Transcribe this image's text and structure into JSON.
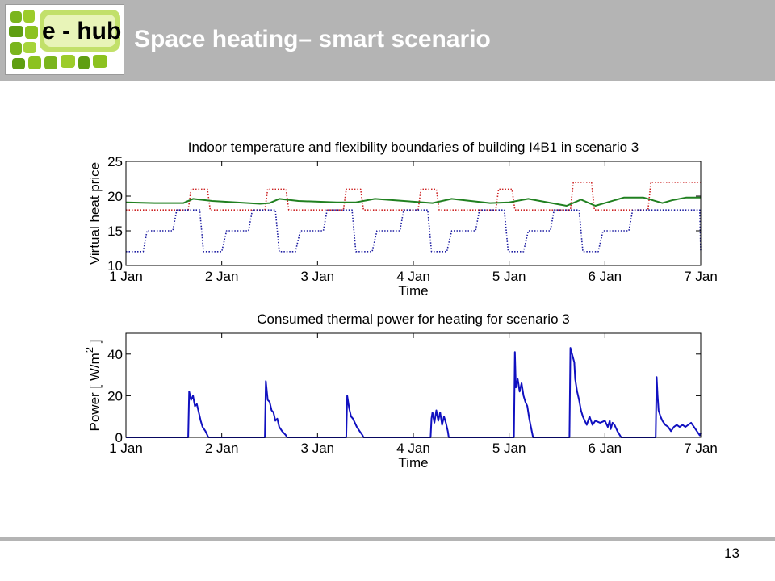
{
  "header": {
    "logo_text": "e - hub",
    "title": "Space heating– smart scenario"
  },
  "footer": {
    "page_number": "13"
  },
  "chart_data": [
    {
      "type": "line",
      "title": "Indoor temperature and flexibility boundaries of building I4B1 in scenario 3",
      "xlabel": "Time",
      "ylabel": "Virtual heat price",
      "xlim": [
        0,
        6
      ],
      "ylim": [
        10,
        25
      ],
      "xticks": [
        0,
        1,
        2,
        3,
        4,
        5,
        6
      ],
      "xtick_labels": [
        "1 Jan",
        "2 Jan",
        "3 Jan",
        "4 Jan",
        "5 Jan",
        "6 Jan",
        "7 Jan"
      ],
      "yticks": [
        10,
        15,
        20,
        25
      ],
      "grid": false,
      "colors": {
        "upper": "#cc2222",
        "lower": "#1a1aa0",
        "temp": "#208020"
      },
      "series": [
        {
          "style": "dotted",
          "color": "#cc2222",
          "x": [
            0,
            0.65,
            0.68,
            0.85,
            0.88,
            1.45,
            1.48,
            1.67,
            1.7,
            2.27,
            2.3,
            2.45,
            2.48,
            3.05,
            3.08,
            3.24,
            3.27,
            3.86,
            3.89,
            4.03,
            4.06,
            4.64,
            4.67,
            4.86,
            4.89,
            5.45,
            5.48,
            5.7,
            5.73,
            6.0
          ],
          "y": [
            18,
            18,
            21,
            21,
            18,
            18,
            21,
            21,
            18,
            18,
            21,
            21,
            18,
            18,
            21,
            21,
            18,
            18,
            21,
            21,
            18,
            18,
            22,
            22,
            18,
            18,
            22,
            22,
            22,
            22
          ]
        },
        {
          "style": "dotted",
          "color": "#1a1aa0",
          "x": [
            0,
            0.18,
            0.22,
            0.49,
            0.53,
            0.77,
            0.81,
            1.0,
            1.05,
            1.28,
            1.32,
            1.56,
            1.6,
            1.77,
            1.82,
            2.06,
            2.1,
            2.36,
            2.4,
            2.57,
            2.62,
            2.86,
            2.9,
            3.15,
            3.19,
            3.35,
            3.4,
            3.65,
            3.69,
            3.95,
            3.99,
            4.15,
            4.2,
            4.43,
            4.47,
            4.73,
            4.77,
            4.93,
            4.98,
            5.25,
            5.29,
            5.53,
            5.57,
            5.99,
            6.0
          ],
          "y": [
            12,
            12,
            15,
            15,
            18,
            18,
            12,
            12,
            15,
            15,
            18,
            18,
            12,
            12,
            15,
            15,
            18,
            18,
            12,
            12,
            15,
            15,
            18,
            18,
            12,
            12,
            15,
            15,
            18,
            18,
            12,
            12,
            15,
            15,
            18,
            18,
            12,
            12,
            15,
            15,
            18,
            18,
            18,
            18,
            12
          ]
        },
        {
          "style": "solid",
          "color": "#208020",
          "x": [
            0,
            0.3,
            0.6,
            0.7,
            0.9,
            1.4,
            1.5,
            1.6,
            1.8,
            2.2,
            2.4,
            2.6,
            3.0,
            3.2,
            3.4,
            3.8,
            4.0,
            4.2,
            4.6,
            4.75,
            4.9,
            5.2,
            5.4,
            5.6,
            5.7,
            5.85,
            6.0
          ],
          "y": [
            19.1,
            19.0,
            19.0,
            19.6,
            19.3,
            18.9,
            19.0,
            19.6,
            19.3,
            19.1,
            19.1,
            19.6,
            19.2,
            19.0,
            19.6,
            19.0,
            19.1,
            19.6,
            18.6,
            19.5,
            18.6,
            19.8,
            19.8,
            19.0,
            19.4,
            19.8,
            19.8
          ]
        }
      ]
    },
    {
      "type": "line",
      "title": "Consumed thermal power for heating for scenario 3",
      "xlabel": "Time",
      "ylabel": "Power [ W/m",
      "ylabel_superscript": "2",
      "ylabel_suffix": " ]",
      "xlim": [
        0,
        6
      ],
      "ylim": [
        0,
        50
      ],
      "xticks": [
        0,
        1,
        2,
        3,
        4,
        5,
        6
      ],
      "xtick_labels": [
        "1 Jan",
        "2 Jan",
        "3 Jan",
        "4 Jan",
        "5 Jan",
        "6 Jan",
        "7 Jan"
      ],
      "yticks": [
        0,
        20,
        40
      ],
      "grid": false,
      "series": [
        {
          "style": "solid",
          "color": "#1010c0",
          "x": [
            0,
            0.65,
            0.66,
            0.68,
            0.7,
            0.72,
            0.74,
            0.76,
            0.78,
            0.8,
            0.83,
            0.85,
            0.86,
            1.45,
            1.46,
            1.48,
            1.5,
            1.52,
            1.54,
            1.56,
            1.58,
            1.6,
            1.63,
            1.67,
            1.68,
            2.3,
            2.31,
            2.33,
            2.35,
            2.37,
            2.39,
            2.41,
            2.44,
            2.47,
            2.48,
            3.18,
            3.19,
            3.2,
            3.22,
            3.24,
            3.26,
            3.28,
            3.3,
            3.32,
            3.34,
            3.36,
            3.37,
            4.05,
            4.06,
            4.07,
            4.09,
            4.11,
            4.13,
            4.15,
            4.17,
            4.19,
            4.21,
            4.25,
            4.3,
            4.35,
            4.4,
            4.45,
            4.5,
            4.55,
            4.6,
            4.63,
            4.64,
            4.68,
            4.69,
            4.71,
            4.73,
            4.75,
            4.77,
            4.79,
            4.81,
            4.84,
            4.87,
            4.9,
            4.95,
            5.0,
            5.03,
            5.05,
            5.06,
            5.08,
            5.1,
            5.13,
            5.17,
            5.2,
            5.23,
            5.26,
            5.29,
            5.32,
            5.35,
            5.4,
            5.45,
            5.5,
            5.53,
            5.54,
            5.55,
            5.56,
            5.58,
            5.6,
            5.63,
            5.66,
            5.69,
            5.72,
            5.75,
            5.78,
            5.81,
            5.84,
            5.87,
            5.9,
            5.93,
            5.96,
            5.99,
            6.0
          ],
          "y": [
            0,
            0,
            22,
            18,
            20,
            15,
            16,
            12,
            8,
            5,
            3,
            1,
            0,
            0,
            27,
            18,
            17,
            13,
            12,
            8,
            9,
            5,
            3,
            1,
            0,
            0,
            20,
            14,
            10,
            9,
            7,
            5,
            3,
            1,
            0,
            0,
            9,
            12,
            7,
            13,
            8,
            12,
            6,
            10,
            7,
            3,
            0,
            0,
            41,
            24,
            28,
            22,
            26,
            20,
            17,
            15,
            9,
            0,
            0,
            0,
            0,
            0,
            0,
            0,
            0,
            0,
            43,
            36,
            28,
            22,
            18,
            13,
            10,
            8,
            6,
            10,
            6,
            8,
            7,
            8,
            5,
            8,
            4,
            7,
            6,
            3,
            0,
            0,
            0,
            0,
            0,
            0,
            0,
            0,
            0,
            0,
            0,
            29,
            20,
            13,
            10,
            8,
            6,
            5,
            3,
            5,
            6,
            5,
            6,
            5,
            6,
            7,
            5,
            3,
            1,
            2
          ]
        }
      ]
    }
  ]
}
